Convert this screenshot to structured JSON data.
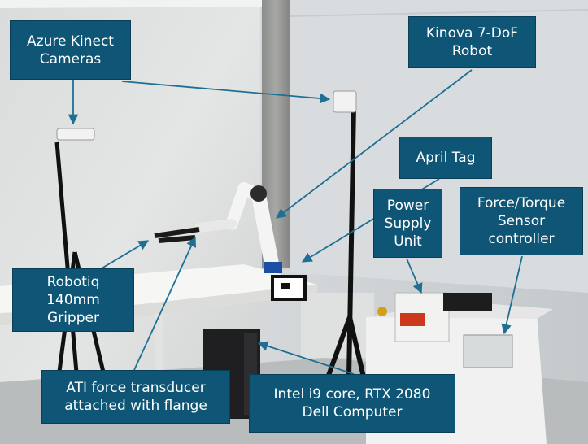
{
  "labels": {
    "azure": [
      "Azure Kinect",
      "Cameras"
    ],
    "kinova": [
      "Kinova 7-DoF",
      "Robot"
    ],
    "april": [
      "April Tag"
    ],
    "psu": [
      "Power",
      "Supply",
      "Unit"
    ],
    "ft": [
      "Force/Torque",
      "Sensor",
      "controller"
    ],
    "robotiq": [
      "Robotiq",
      "140mm",
      "Gripper"
    ],
    "ati": [
      "ATI force transducer",
      "attached with flange"
    ],
    "intel": [
      "Intel i9 core, RTX 2080",
      "Dell Computer"
    ]
  },
  "colors": {
    "label_bg": "#0f5676",
    "label_text": "#ffffff",
    "arrow": "#1f6f93"
  }
}
